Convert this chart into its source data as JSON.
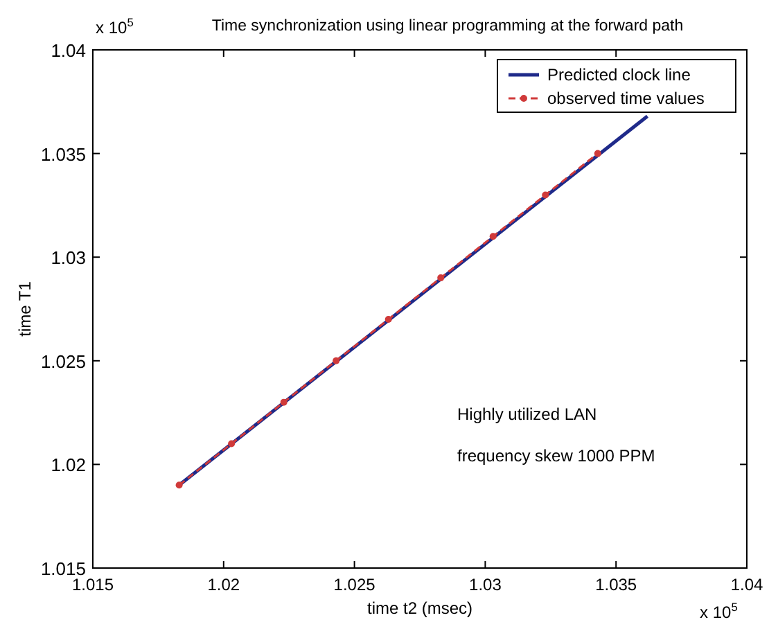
{
  "chart_data": {
    "type": "line",
    "title": "Time synchronization using linear programming at the forward path",
    "xlabel": "time t2 (msec)",
    "ylabel": "time T1",
    "xlim": [
      1.015,
      1.04
    ],
    "ylim": [
      1.015,
      1.04
    ],
    "xticks": [
      1.015,
      1.02,
      1.025,
      1.03,
      1.035,
      1.04
    ],
    "yticks": [
      1.015,
      1.02,
      1.025,
      1.03,
      1.035,
      1.04
    ],
    "series": [
      {
        "name": "Predicted clock line",
        "color": "#1f2a8a",
        "x": [
          1.0183,
          1.0362
        ],
        "values": [
          1.019,
          1.0368
        ],
        "marker": "none",
        "line_style": "solid"
      },
      {
        "name": "observed time values",
        "color": "#d03a3a",
        "x": [
          1.0183,
          1.0203,
          1.0223,
          1.0243,
          1.0263,
          1.0283,
          1.0303,
          1.0323,
          1.0343
        ],
        "values": [
          1.019,
          1.021,
          1.023,
          1.025,
          1.027,
          1.029,
          1.031,
          1.033,
          1.035
        ],
        "marker": "circle",
        "line_style": "dashed"
      }
    ],
    "annotations": [
      {
        "text": "Highly utilized LAN"
      },
      {
        "text": "frequency skew 1000 PPM"
      },
      {
        "text": "x 10$^{5}$"
      },
      {
        "text": "x 10$^{5}$"
      }
    ],
    "legend": "top right",
    "grid": false
  }
}
